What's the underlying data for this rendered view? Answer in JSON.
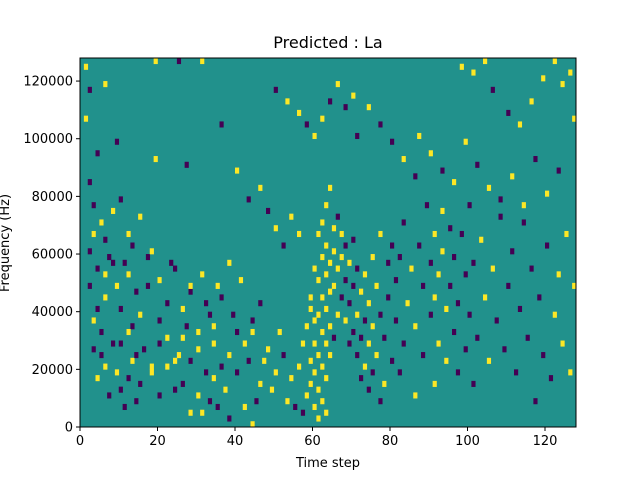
{
  "chart_data": {
    "type": "heatmap",
    "title": "Predicted : La",
    "xlabel": "Time step",
    "ylabel": "Frequency (Hz)",
    "xlim": [
      0,
      128
    ],
    "ylim": [
      0,
      128000
    ],
    "xticks": [
      0,
      20,
      40,
      60,
      80,
      100,
      120
    ],
    "yticks": [
      0,
      20000,
      40000,
      60000,
      80000,
      100000,
      120000
    ],
    "grid": false,
    "legend": "none",
    "colors": {
      "background": "#21918c",
      "high": "#fde725",
      "low": "#440154"
    },
    "time_bins": 128,
    "freq_bins": 64,
    "freq_bin_hz": 2000,
    "cells": [
      [
        1,
        62,
        "high"
      ],
      [
        2,
        58,
        "low"
      ],
      [
        6,
        59,
        "high"
      ],
      [
        19,
        63,
        "high"
      ],
      [
        25,
        63,
        "low"
      ],
      [
        31,
        63,
        "high"
      ],
      [
        1,
        53,
        "high"
      ],
      [
        4,
        47,
        "low"
      ],
      [
        9,
        49,
        "low"
      ],
      [
        19,
        46,
        "high"
      ],
      [
        27,
        45,
        "low"
      ],
      [
        36,
        52,
        "low"
      ],
      [
        2,
        42,
        "low"
      ],
      [
        3,
        38,
        "low"
      ],
      [
        5,
        35,
        "high"
      ],
      [
        6,
        32,
        "low"
      ],
      [
        8,
        37,
        "high"
      ],
      [
        10,
        39,
        "low"
      ],
      [
        12,
        33,
        "high"
      ],
      [
        13,
        31,
        "low"
      ],
      [
        15,
        36,
        "high"
      ],
      [
        17,
        29,
        "low"
      ],
      [
        20,
        25,
        "high"
      ],
      [
        22,
        21,
        "low"
      ],
      [
        24,
        27,
        "low"
      ],
      [
        26,
        20,
        "high"
      ],
      [
        28,
        23,
        "low"
      ],
      [
        31,
        26,
        "high"
      ],
      [
        33,
        19,
        "low"
      ],
      [
        35,
        24,
        "high"
      ],
      [
        2,
        30,
        "low"
      ],
      [
        3,
        33,
        "high"
      ],
      [
        4,
        27,
        "low"
      ],
      [
        6,
        22,
        "high"
      ],
      [
        7,
        29,
        "low"
      ],
      [
        9,
        24,
        "high"
      ],
      [
        10,
        20,
        "low"
      ],
      [
        11,
        28,
        "low"
      ],
      [
        12,
        26,
        "high"
      ],
      [
        13,
        17,
        "low"
      ],
      [
        14,
        23,
        "low"
      ],
      [
        15,
        19,
        "high"
      ],
      [
        17,
        24,
        "low"
      ],
      [
        18,
        30,
        "high"
      ],
      [
        20,
        18,
        "low"
      ],
      [
        22,
        15,
        "high"
      ],
      [
        23,
        28,
        "low"
      ],
      [
        25,
        12,
        "high"
      ],
      [
        27,
        17,
        "low"
      ],
      [
        28,
        24,
        "high"
      ],
      [
        30,
        16,
        "high"
      ],
      [
        32,
        21,
        "low"
      ],
      [
        34,
        14,
        "high"
      ],
      [
        36,
        22,
        "low"
      ],
      [
        38,
        28,
        "high"
      ],
      [
        39,
        19,
        "low"
      ],
      [
        41,
        25,
        "high"
      ],
      [
        43,
        11,
        "low"
      ],
      [
        44,
        16,
        "high"
      ],
      [
        46,
        21,
        "low"
      ],
      [
        3,
        13,
        "low"
      ],
      [
        4,
        8,
        "high"
      ],
      [
        5,
        16,
        "low"
      ],
      [
        3,
        18,
        "high"
      ],
      [
        5,
        12,
        "low"
      ],
      [
        6,
        10,
        "high"
      ],
      [
        7,
        5,
        "low"
      ],
      [
        8,
        14,
        "low"
      ],
      [
        9,
        9,
        "high"
      ],
      [
        10,
        6,
        "low"
      ],
      [
        11,
        3,
        "low"
      ],
      [
        12,
        8,
        "low"
      ],
      [
        13,
        11,
        "high"
      ],
      [
        14,
        4,
        "low"
      ],
      [
        15,
        7,
        "low"
      ],
      [
        18,
        9,
        "high"
      ],
      [
        20,
        5,
        "low"
      ],
      [
        24,
        11,
        "high"
      ],
      [
        26,
        7,
        "low"
      ],
      [
        28,
        2,
        "high"
      ],
      [
        30,
        5,
        "high"
      ],
      [
        31,
        2,
        "high"
      ],
      [
        33,
        4,
        "low"
      ],
      [
        34,
        8,
        "high"
      ],
      [
        35,
        3,
        "low"
      ],
      [
        37,
        6,
        "high"
      ],
      [
        38,
        1,
        "low"
      ],
      [
        40,
        9,
        "low"
      ],
      [
        42,
        3,
        "high"
      ],
      [
        44,
        0,
        "high"
      ],
      [
        45,
        4,
        "low"
      ],
      [
        46,
        7,
        "high"
      ],
      [
        47,
        11,
        "high"
      ],
      [
        48,
        13,
        "high"
      ],
      [
        49,
        6,
        "high"
      ],
      [
        50,
        9,
        "high"
      ],
      [
        51,
        16,
        "high"
      ],
      [
        52,
        12,
        "low"
      ],
      [
        53,
        4,
        "high"
      ],
      [
        54,
        8,
        "high"
      ],
      [
        55,
        3,
        "low"
      ],
      [
        56,
        10,
        "high"
      ],
      [
        57,
        2,
        "low"
      ],
      [
        57,
        14,
        "high"
      ],
      [
        58,
        5,
        "high"
      ],
      [
        58,
        17,
        "high"
      ],
      [
        59,
        7,
        "high"
      ],
      [
        59,
        11,
        "high"
      ],
      [
        59,
        20,
        "high"
      ],
      [
        59,
        22,
        "high"
      ],
      [
        60,
        3,
        "high"
      ],
      [
        60,
        9,
        "high"
      ],
      [
        60,
        14,
        "high"
      ],
      [
        60,
        18,
        "high"
      ],
      [
        60,
        27,
        "high"
      ],
      [
        61,
        1,
        "high"
      ],
      [
        61,
        6,
        "high"
      ],
      [
        61,
        12,
        "high"
      ],
      [
        61,
        19,
        "high"
      ],
      [
        61,
        25,
        "high"
      ],
      [
        61,
        33,
        "high"
      ],
      [
        62,
        4,
        "high"
      ],
      [
        62,
        10,
        "high"
      ],
      [
        62,
        16,
        "high"
      ],
      [
        62,
        22,
        "high"
      ],
      [
        62,
        29,
        "high"
      ],
      [
        62,
        35,
        "high"
      ],
      [
        63,
        2,
        "high"
      ],
      [
        63,
        8,
        "high"
      ],
      [
        63,
        14,
        "high"
      ],
      [
        63,
        20,
        "high"
      ],
      [
        63,
        26,
        "high"
      ],
      [
        63,
        31,
        "high"
      ],
      [
        63,
        38,
        "high"
      ],
      [
        64,
        12,
        "high"
      ],
      [
        64,
        17,
        "high"
      ],
      [
        64,
        23,
        "high"
      ],
      [
        64,
        28,
        "high"
      ],
      [
        64,
        41,
        "high"
      ],
      [
        65,
        15,
        "low"
      ],
      [
        65,
        24,
        "high"
      ],
      [
        65,
        30,
        "high"
      ],
      [
        65,
        34,
        "high"
      ],
      [
        66,
        19,
        "high"
      ],
      [
        66,
        27,
        "high"
      ],
      [
        66,
        36,
        "low"
      ],
      [
        67,
        22,
        "low"
      ],
      [
        67,
        29,
        "high"
      ],
      [
        67,
        33,
        "high"
      ],
      [
        68,
        18,
        "high"
      ],
      [
        68,
        25,
        "low"
      ],
      [
        68,
        31,
        "low"
      ],
      [
        69,
        14,
        "low"
      ],
      [
        69,
        21,
        "low"
      ],
      [
        69,
        28,
        "high"
      ],
      [
        70,
        16,
        "low"
      ],
      [
        70,
        24,
        "low"
      ],
      [
        70,
        32,
        "low"
      ],
      [
        71,
        12,
        "low"
      ],
      [
        71,
        19,
        "high"
      ],
      [
        71,
        27,
        "low"
      ],
      [
        72,
        8,
        "low"
      ],
      [
        72,
        15,
        "low"
      ],
      [
        72,
        23,
        "high"
      ],
      [
        73,
        10,
        "high"
      ],
      [
        73,
        18,
        "low"
      ],
      [
        73,
        26,
        "high"
      ],
      [
        74,
        6,
        "low"
      ],
      [
        74,
        14,
        "high"
      ],
      [
        74,
        21,
        "high"
      ],
      [
        75,
        9,
        "low"
      ],
      [
        75,
        17,
        "high"
      ],
      [
        75,
        29,
        "high"
      ],
      [
        76,
        12,
        "high"
      ],
      [
        76,
        24,
        "high"
      ],
      [
        77,
        4,
        "low"
      ],
      [
        77,
        19,
        "low"
      ],
      [
        77,
        33,
        "high"
      ],
      [
        78,
        7,
        "high"
      ],
      [
        78,
        15,
        "low"
      ],
      [
        79,
        22,
        "low"
      ],
      [
        79,
        28,
        "low"
      ],
      [
        80,
        11,
        "low"
      ],
      [
        80,
        31,
        "low"
      ],
      [
        81,
        18,
        "low"
      ],
      [
        81,
        25,
        "low"
      ],
      [
        82,
        9,
        "low"
      ],
      [
        82,
        29,
        "low"
      ],
      [
        83,
        14,
        "low"
      ],
      [
        83,
        35,
        "low"
      ],
      [
        84,
        21,
        "high"
      ],
      [
        85,
        27,
        "high"
      ],
      [
        86,
        5,
        "high"
      ],
      [
        86,
        17,
        "high"
      ],
      [
        87,
        31,
        "low"
      ],
      [
        88,
        12,
        "low"
      ],
      [
        88,
        24,
        "low"
      ],
      [
        89,
        38,
        "low"
      ],
      [
        90,
        19,
        "low"
      ],
      [
        90,
        28,
        "low"
      ],
      [
        91,
        7,
        "high"
      ],
      [
        91,
        22,
        "high"
      ],
      [
        91,
        33,
        "high"
      ],
      [
        92,
        14,
        "high"
      ],
      [
        92,
        26,
        "high"
      ],
      [
        93,
        30,
        "high"
      ],
      [
        93,
        37,
        "high"
      ],
      [
        94,
        11,
        "high"
      ],
      [
        94,
        20,
        "high"
      ],
      [
        95,
        24,
        "low"
      ],
      [
        95,
        34,
        "low"
      ],
      [
        96,
        16,
        "low"
      ],
      [
        96,
        29,
        "low"
      ],
      [
        97,
        9,
        "low"
      ],
      [
        97,
        21,
        "low"
      ],
      [
        98,
        33,
        "low"
      ],
      [
        99,
        13,
        "low"
      ],
      [
        99,
        26,
        "low"
      ],
      [
        100,
        19,
        "low"
      ],
      [
        100,
        38,
        "low"
      ],
      [
        101,
        7,
        "low"
      ],
      [
        101,
        28,
        "low"
      ],
      [
        102,
        15,
        "low"
      ],
      [
        103,
        32,
        "high"
      ],
      [
        104,
        22,
        "high"
      ],
      [
        105,
        11,
        "high"
      ],
      [
        106,
        27,
        "high"
      ],
      [
        107,
        18,
        "low"
      ],
      [
        108,
        36,
        "low"
      ],
      [
        109,
        13,
        "low"
      ],
      [
        110,
        24,
        "low"
      ],
      [
        111,
        30,
        "low"
      ],
      [
        112,
        9,
        "low"
      ],
      [
        113,
        20,
        "low"
      ],
      [
        114,
        35,
        "low"
      ],
      [
        115,
        15,
        "low"
      ],
      [
        116,
        27,
        "low"
      ],
      [
        117,
        4,
        "low"
      ],
      [
        118,
        22,
        "low"
      ],
      [
        119,
        12,
        "low"
      ],
      [
        120,
        31,
        "low"
      ],
      [
        121,
        8,
        "low"
      ],
      [
        122,
        19,
        "high"
      ],
      [
        123,
        26,
        "high"
      ],
      [
        124,
        14,
        "high"
      ],
      [
        125,
        33,
        "high"
      ],
      [
        126,
        9,
        "high"
      ],
      [
        127,
        24,
        "high"
      ],
      [
        98,
        62,
        "high"
      ],
      [
        101,
        61,
        "high"
      ],
      [
        104,
        63,
        "high"
      ],
      [
        106,
        58,
        "low"
      ],
      [
        110,
        54,
        "low"
      ],
      [
        113,
        52,
        "high"
      ],
      [
        116,
        56,
        "high"
      ],
      [
        119,
        60,
        "high"
      ],
      [
        122,
        63,
        "high"
      ],
      [
        124,
        59,
        "high"
      ],
      [
        126,
        61,
        "high"
      ],
      [
        127,
        53,
        "high"
      ],
      [
        87,
        50,
        "high"
      ],
      [
        90,
        47,
        "high"
      ],
      [
        93,
        44,
        "low"
      ],
      [
        96,
        42,
        "high"
      ],
      [
        99,
        49,
        "high"
      ],
      [
        102,
        45,
        "low"
      ],
      [
        105,
        41,
        "high"
      ],
      [
        108,
        39,
        "low"
      ],
      [
        111,
        43,
        "high"
      ],
      [
        114,
        38,
        "high"
      ],
      [
        117,
        46,
        "low"
      ],
      [
        120,
        40,
        "high"
      ],
      [
        123,
        44,
        "low"
      ],
      [
        71,
        50,
        "low"
      ],
      [
        74,
        55,
        "high"
      ],
      [
        77,
        52,
        "low"
      ],
      [
        80,
        49,
        "low"
      ],
      [
        83,
        46,
        "high"
      ],
      [
        86,
        43,
        "low"
      ],
      [
        50,
        58,
        "low"
      ],
      [
        53,
        56,
        "high"
      ],
      [
        56,
        54,
        "high"
      ],
      [
        58,
        52,
        "low"
      ],
      [
        60,
        50,
        "high"
      ],
      [
        62,
        53,
        "high"
      ],
      [
        64,
        56,
        "low"
      ],
      [
        66,
        59,
        "high"
      ],
      [
        68,
        55,
        "low"
      ],
      [
        70,
        57,
        "high"
      ],
      [
        40,
        44,
        "high"
      ],
      [
        43,
        39,
        "low"
      ],
      [
        46,
        41,
        "high"
      ],
      [
        48,
        37,
        "low"
      ],
      [
        50,
        34,
        "high"
      ],
      [
        52,
        31,
        "low"
      ],
      [
        54,
        36,
        "high"
      ],
      [
        56,
        33,
        "high"
      ],
      [
        2,
        24,
        "low"
      ],
      [
        4,
        20,
        "low"
      ],
      [
        6,
        26,
        "high"
      ],
      [
        8,
        28,
        "low"
      ],
      [
        10,
        14,
        "low"
      ],
      [
        12,
        16,
        "high"
      ],
      [
        14,
        12,
        "low"
      ],
      [
        16,
        13,
        "low"
      ],
      [
        18,
        10,
        "high"
      ],
      [
        20,
        14,
        "low"
      ],
      [
        22,
        10,
        "high"
      ],
      [
        24,
        6,
        "low"
      ],
      [
        26,
        15,
        "high"
      ],
      [
        28,
        11,
        "low"
      ],
      [
        30,
        13,
        "high"
      ],
      [
        32,
        9,
        "low"
      ],
      [
        34,
        17,
        "high"
      ],
      [
        36,
        10,
        "low"
      ],
      [
        38,
        12,
        "high"
      ],
      [
        40,
        16,
        "low"
      ],
      [
        42,
        14,
        "high"
      ],
      [
        44,
        18,
        "low"
      ]
    ]
  }
}
